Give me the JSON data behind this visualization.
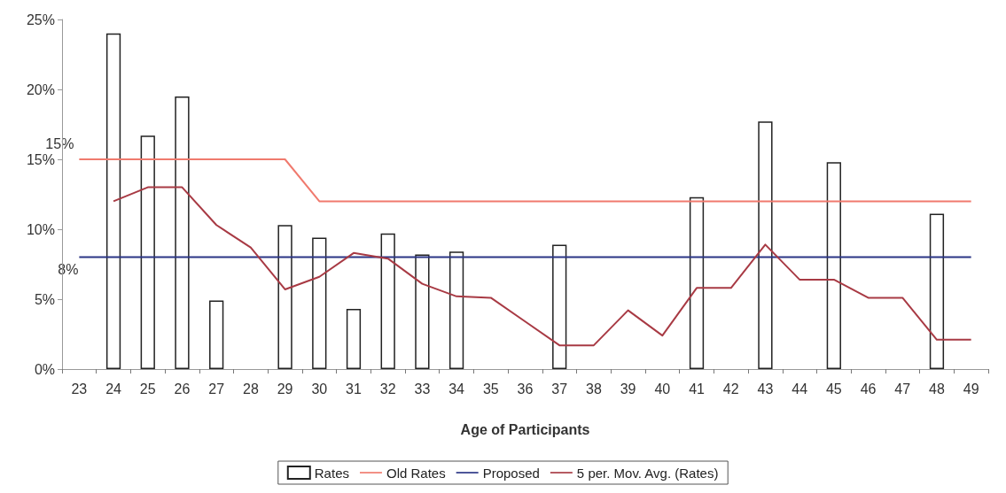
{
  "chart_data": {
    "type": "bar",
    "xlabel": "Age of Participants",
    "categories": [
      "23",
      "24",
      "25",
      "26",
      "27",
      "28",
      "29",
      "30",
      "31",
      "32",
      "33",
      "34",
      "35",
      "36",
      "37",
      "38",
      "39",
      "40",
      "41",
      "42",
      "43",
      "44",
      "45",
      "46",
      "47",
      "48",
      "49"
    ],
    "series": [
      {
        "name": "Rates",
        "color": "#ffffff",
        "values": [
          null,
          24,
          16.7,
          19.5,
          4.9,
          null,
          10.3,
          9.4,
          4.3,
          9.7,
          8.2,
          8.4,
          null,
          null,
          8.9,
          null,
          null,
          null,
          12.3,
          null,
          17.7,
          null,
          14.8,
          null,
          null,
          11.1,
          null
        ]
      },
      {
        "name": "Old Rates",
        "type": "line",
        "color": "#f07a6e",
        "values": [
          15,
          15,
          15,
          15,
          15,
          15,
          15,
          12,
          12,
          12,
          12,
          12,
          12,
          12,
          12,
          12,
          12,
          12,
          12,
          12,
          12,
          12,
          12,
          12,
          12,
          12,
          12
        ]
      },
      {
        "name": "Proposed",
        "type": "line",
        "color": "#2b3585",
        "values": [
          8,
          8,
          8,
          8,
          8,
          8,
          8,
          8,
          8,
          8,
          8,
          8,
          8,
          8,
          8,
          8,
          8,
          8,
          8,
          8,
          8,
          8,
          8,
          8,
          8,
          8,
          8
        ]
      },
      {
        "name": "5 per. Mov. Avg. (Rates)",
        "type": "line",
        "color": "#a83a44",
        "values": [
          null,
          12,
          13,
          13,
          10.3,
          8.7,
          5.7,
          6.6,
          8.3,
          7.9,
          6.1,
          5.2,
          5.1,
          3.4,
          1.7,
          1.7,
          4.2,
          2.4,
          5.8,
          5.8,
          8.9,
          6.4,
          6.4,
          5.1,
          5.1,
          2.1,
          2.1
        ]
      }
    ],
    "ylim": [
      0,
      25
    ],
    "yticks": [
      {
        "value": 0,
        "label": "0%"
      },
      {
        "value": 5,
        "label": "5%"
      },
      {
        "value": 10,
        "label": "10%"
      },
      {
        "value": 15,
        "label": "15%"
      },
      {
        "value": 20,
        "label": "20%"
      },
      {
        "value": 25,
        "label": "25%"
      }
    ],
    "annotations": [
      {
        "text": "15%",
        "x": "23",
        "y": 15
      },
      {
        "text": "8%",
        "x": "23",
        "y": 8
      }
    ],
    "grid": false,
    "legend": "bottom",
    "marker": "none"
  }
}
